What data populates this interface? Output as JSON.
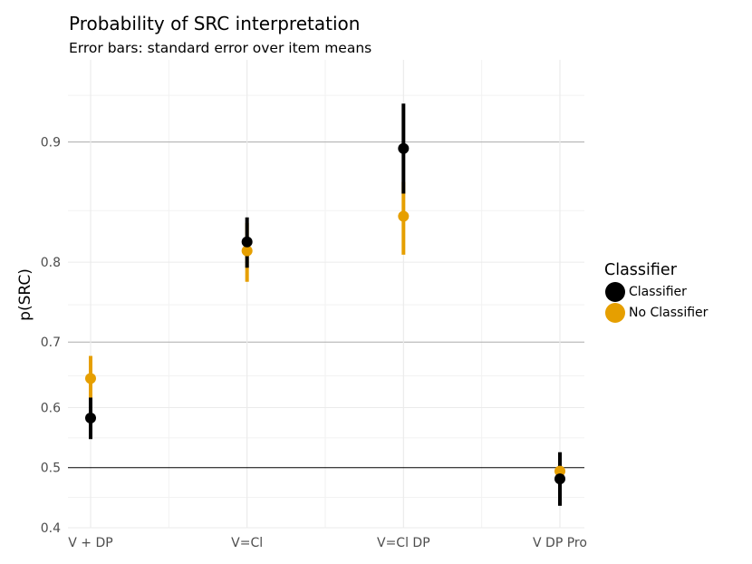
{
  "title": "Probability of SRC interpretation",
  "subtitle": "Error bars: standard error over item means",
  "colors": {
    "Classifier": "#000000",
    "No Classifier": "#E69F00"
  },
  "chart_data": {
    "type": "scatter",
    "title": "Probability of SRC interpretation",
    "subtitle": "Error bars: standard error over item means",
    "xlabel": "",
    "ylabel": "p(SRC)",
    "categories": [
      "V + DP",
      "V=Cl",
      "V=Cl DP",
      "V DP Pro"
    ],
    "yscale": "logit",
    "ylim": [
      0.4,
      0.94
    ],
    "yticks": [
      0.4,
      0.5,
      0.6,
      0.7,
      0.8,
      0.9
    ],
    "ytick_labels": [
      "0.4",
      "0.5",
      "0.6",
      "0.7",
      "0.8",
      "0.9"
    ],
    "reference_line": 0.5,
    "grid": true,
    "legend": {
      "title": "Classifier",
      "position": "right",
      "entries": [
        "Classifier",
        "No Classifier"
      ]
    },
    "series": [
      {
        "name": "Classifier",
        "values": [
          0.583,
          0.821,
          0.896,
          0.481
        ],
        "lower": [
          0.548,
          0.794,
          0.864,
          0.436
        ],
        "upper": [
          0.616,
          0.844,
          0.921,
          0.526
        ]
      },
      {
        "name": "No Classifier",
        "values": [
          0.646,
          0.812,
          0.845,
          0.494
        ],
        "lower": [
          0.6,
          0.778,
          0.808,
          0.475
        ],
        "upper": [
          0.68,
          0.839,
          0.873,
          0.503
        ]
      }
    ]
  }
}
